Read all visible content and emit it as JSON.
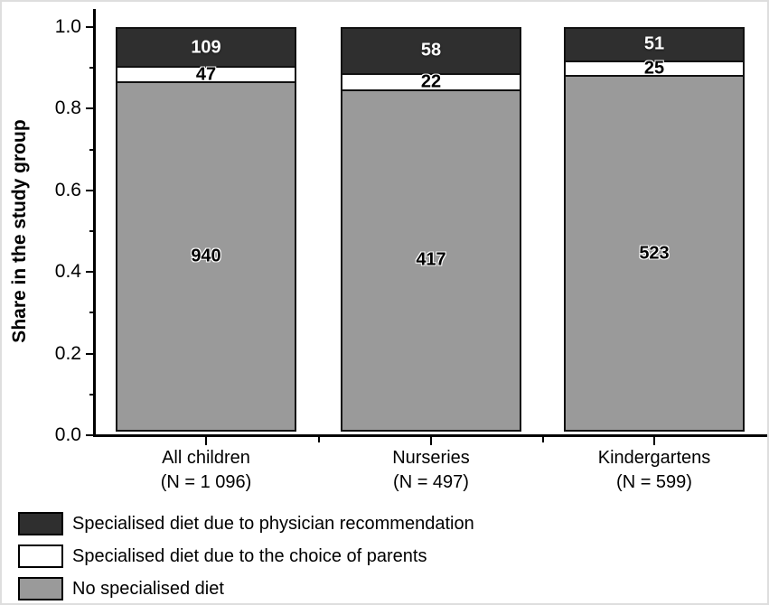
{
  "chart_data": {
    "type": "bar",
    "stacked": true,
    "title": "",
    "xlabel": "",
    "ylabel": "Share in the study group",
    "ylim": [
      0.0,
      1.0
    ],
    "grid": false,
    "legend_position": "bottom-left",
    "yticks": [
      {
        "v": 1.0,
        "label": "1.0"
      },
      {
        "v": 0.8,
        "label": "0.8"
      },
      {
        "v": 0.6,
        "label": "0.6"
      },
      {
        "v": 0.4,
        "label": "0.4"
      },
      {
        "v": 0.2,
        "label": "0.2"
      },
      {
        "v": 0.0,
        "label": "0.0"
      }
    ],
    "yticks_minor": [
      0.9,
      0.7,
      0.5,
      0.3,
      0.1
    ],
    "categories": [
      {
        "label": "All children",
        "n_label": "(N = 1 096)",
        "total": 1096
      },
      {
        "label": "Nurseries",
        "n_label": "(N = 497)",
        "total": 497
      },
      {
        "label": "Kindergartens",
        "n_label": "(N = 599)",
        "total": 599
      }
    ],
    "series": [
      {
        "name": "No specialised diet",
        "color": "#9a9a9a",
        "label_color": "#000000",
        "label_style": "halo",
        "values": [
          940,
          417,
          523
        ]
      },
      {
        "name": "Specialised diet due to the choice of parents",
        "color": "#ffffff",
        "label_color": "#000000",
        "label_style": "halo",
        "values": [
          47,
          22,
          25
        ]
      },
      {
        "name": "Specialised diet due to physician recommendation",
        "color": "#2f2f2f",
        "label_color": "#ffffff",
        "label_style": "light",
        "values": [
          109,
          58,
          51
        ]
      }
    ]
  },
  "legend": {
    "items": [
      {
        "color": "#2f2f2f",
        "label": "Specialised diet due to physician recommendation"
      },
      {
        "color": "#ffffff",
        "label": "Specialised diet due to the choice of parents"
      },
      {
        "color": "#9a9a9a",
        "label": "No specialised diet"
      }
    ]
  },
  "colors": {
    "axis": "#000000",
    "bar_border": "#111111",
    "frame": "#dedede",
    "background": "#ffffff"
  }
}
